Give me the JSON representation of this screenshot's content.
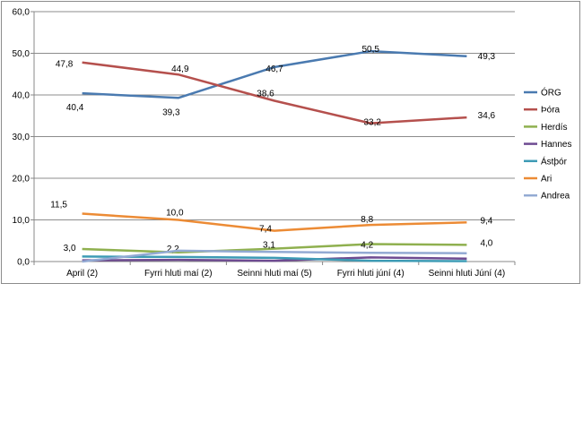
{
  "chart_data": {
    "type": "line",
    "categories": [
      "April (2)",
      "Fyrri hluti maí (2)",
      "Seinni hluti maí (5)",
      "Fyrri hluti júní (4)",
      "Seinni hluti Júní (4)"
    ],
    "ylim": [
      0,
      60
    ],
    "yticks": [
      "0,0",
      "10,0",
      "20,0",
      "30,0",
      "40,0",
      "50,0",
      "60,0"
    ],
    "ytick_values": [
      0,
      10,
      20,
      30,
      40,
      50,
      60
    ],
    "grid": true,
    "legend": "right",
    "series": [
      {
        "name": "ÓRG",
        "color": "#4a7ab0",
        "values": [
          40.4,
          39.3,
          46.7,
          50.5,
          49.3
        ],
        "labels": [
          "40,4",
          "39,3",
          "46,7",
          "50,5",
          "49,3"
        ]
      },
      {
        "name": "Þóra",
        "color": "#b5504d",
        "values": [
          47.8,
          44.9,
          38.6,
          33.2,
          34.6
        ],
        "labels": [
          "47,8",
          "44,9",
          "38,6",
          "33,2",
          "34,6"
        ]
      },
      {
        "name": "Herdís",
        "color": "#8fb04f",
        "values": [
          3.0,
          2.2,
          3.1,
          4.2,
          4.0
        ],
        "labels": [
          "3,0",
          "2,2",
          "3,1",
          "4,2",
          "4,0"
        ]
      },
      {
        "name": "Hannes",
        "color": "#6e4b91",
        "values": [
          0.3,
          0.4,
          0.2,
          1.0,
          0.7
        ],
        "labels": []
      },
      {
        "name": "Ástþór",
        "color": "#3d9bb5",
        "values": [
          1.2,
          1.1,
          0.9,
          0.2,
          0.1
        ],
        "labels": []
      },
      {
        "name": "Ari",
        "color": "#ec8b35",
        "values": [
          11.5,
          10.0,
          7.4,
          8.8,
          9.4
        ],
        "labels": [
          "11,5",
          "10,0",
          "7,4",
          "8,8",
          "9,4"
        ]
      },
      {
        "name": "Andrea",
        "color": "#93aad3",
        "values": [
          0.0,
          2.6,
          2.3,
          2.1,
          2.0
        ],
        "labels": []
      }
    ]
  }
}
